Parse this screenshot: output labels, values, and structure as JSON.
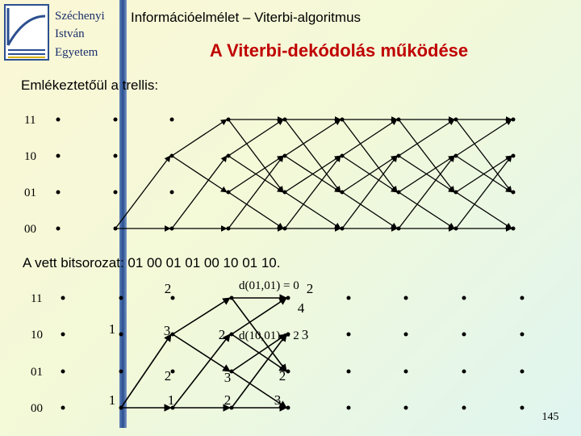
{
  "logo": {
    "lines": [
      "Széchenyi",
      "István",
      "Egyetem"
    ]
  },
  "header": {
    "course": "Információelmélet – Viterbi-algoritmus",
    "title": "A Viterbi-dekódolás működése"
  },
  "trellis_intro": {
    "caption": "Emlékeztetőül a trellis:",
    "states": [
      "11",
      "10",
      "01",
      "00"
    ]
  },
  "decoding": {
    "caption": "A vett bitsorozat: 01 00 01 01 00 10 01 10.",
    "states": [
      "11",
      "10",
      "01",
      "00"
    ],
    "metrics": [
      2,
      2,
      4,
      1,
      3,
      2,
      3,
      2,
      3,
      2,
      1,
      1,
      2,
      3
    ],
    "formulas": [
      "d(01,01) = 0",
      "d(10,01) = 2"
    ]
  },
  "page_number": "145"
}
